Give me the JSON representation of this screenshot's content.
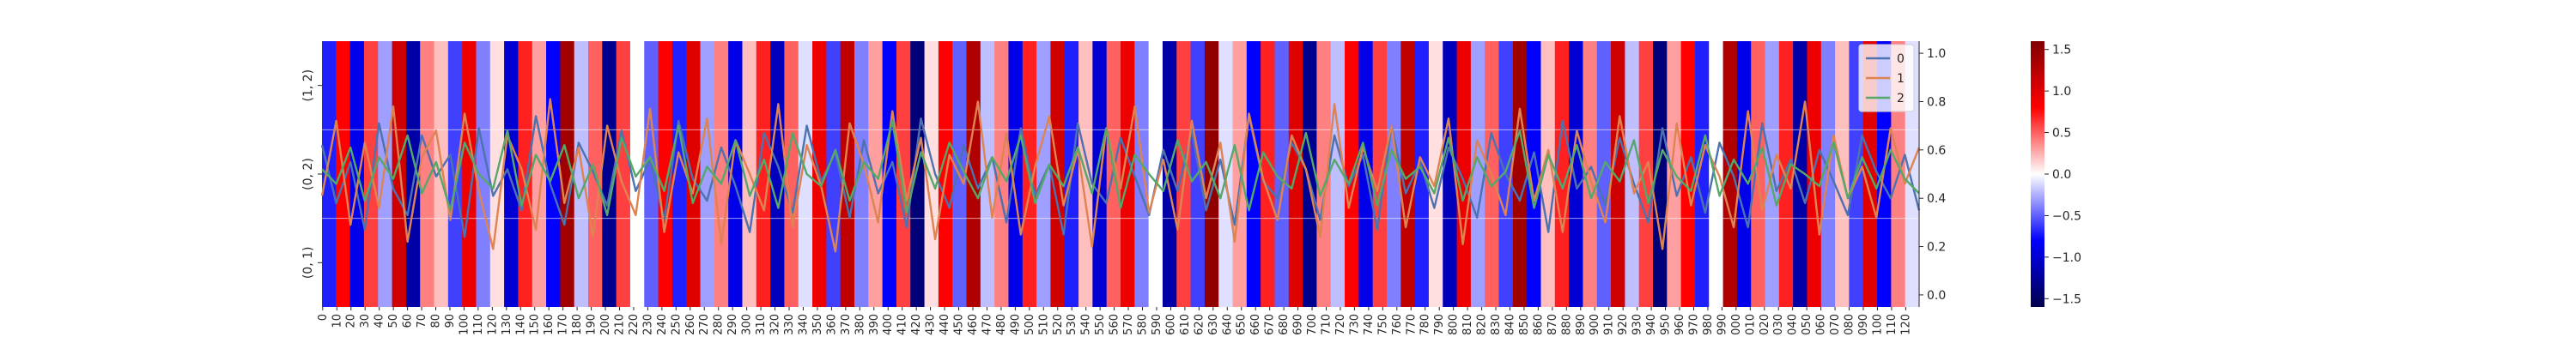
{
  "chart_data": {
    "type": "heatmap",
    "title": "",
    "heatmap": {
      "rows": [
        "(0, 1)",
        "(0, 2)",
        "(1, 2)"
      ],
      "x_tick_step": 10,
      "x_tick_labels": [
        "0",
        "10",
        "20",
        "30",
        "40",
        "50",
        "60",
        "70",
        "80",
        "90",
        "100",
        "110",
        "120",
        "130",
        "140",
        "150",
        "160",
        "170",
        "180",
        "190",
        "200",
        "210",
        "220",
        "230",
        "240",
        "250",
        "260",
        "270",
        "280",
        "290",
        "300",
        "310",
        "320",
        "330",
        "340",
        "350",
        "360",
        "370",
        "380",
        "390",
        "400",
        "410",
        "420",
        "430",
        "440",
        "450",
        "460",
        "470",
        "480",
        "490",
        "500",
        "510",
        "520",
        "530",
        "540",
        "550",
        "560",
        "570",
        "580",
        "590",
        "600",
        "610",
        "620",
        "630",
        "640",
        "650",
        "660",
        "670",
        "680",
        "690",
        "700",
        "710",
        "720",
        "730",
        "740",
        "750",
        "760",
        "770",
        "780",
        "790",
        "800",
        "810",
        "820",
        "830",
        "840",
        "850",
        "860",
        "870",
        "880",
        "890",
        "900",
        "910",
        "920",
        "930",
        "940",
        "950",
        "960",
        "970",
        "980",
        "990",
        "000",
        "010",
        "020",
        "030",
        "040",
        "050",
        "060",
        "070",
        "080",
        "090",
        "100",
        "110",
        "120"
      ],
      "colormap": "seismic",
      "column_values": [
        -0.7,
        0.8,
        -0.9,
        0.6,
        -0.3,
        1.1,
        -1.2,
        0.4,
        0.2,
        -0.6,
        0.9,
        -0.4,
        0.1,
        -1.0,
        0.7,
        0.3,
        -0.8,
        1.4,
        -0.2,
        0.5,
        -1.3,
        0.6,
        0.0,
        -0.5,
        0.8,
        -0.7,
        1.0,
        -0.3,
        0.4,
        -0.9,
        0.2,
        0.7,
        -1.1,
        0.5,
        -0.1,
        0.9,
        -0.6,
        1.2,
        -0.4,
        0.3,
        -0.8,
        0.6,
        -1.4,
        0.1,
        0.8,
        -0.5,
        1.3,
        -0.2,
        0.4,
        -0.9,
        0.7,
        -0.3,
        1.1,
        -0.7,
        0.2,
        -1.0,
        0.5,
        0.9,
        -0.4,
        0.0,
        -1.2,
        0.6,
        -0.6,
        1.5,
        -0.1,
        0.3,
        -0.8,
        0.7,
        -0.5,
        1.0,
        -1.3,
        0.4,
        -0.2,
        0.8,
        -0.9,
        0.6,
        -0.4,
        1.2,
        -0.7,
        0.1,
        -1.1,
        0.9,
        -0.3,
        0.5,
        -0.6,
        1.4,
        -0.8,
        0.2,
        0.7,
        -1.0,
        0.4,
        -0.5,
        1.1,
        -0.2,
        0.6,
        -1.4,
        0.3,
        0.8,
        -0.7,
        0.0,
        1.3,
        -0.9,
        0.5,
        -0.3,
        0.7,
        -1.2,
        0.9,
        -0.4,
        0.2,
        -0.6,
        1.0,
        -0.8,
        0.4,
        -0.1
      ],
      "colorbar": {
        "min": -1.6,
        "max": 1.6,
        "ticks": [
          -1.5,
          -1.0,
          -0.5,
          0.0,
          0.5,
          1.0,
          1.5
        ]
      }
    },
    "lines": {
      "type": "line",
      "ylim": [
        -0.05,
        1.05
      ],
      "y_ticks": [
        0.0,
        0.2,
        0.4,
        0.6,
        0.8,
        1.0
      ],
      "legend_position": "top-right",
      "series": [
        {
          "name": "0",
          "color": "#4c72b0",
          "values": [
            0.62,
            0.38,
            0.55,
            0.27,
            0.71,
            0.44,
            0.33,
            0.66,
            0.49,
            0.58,
            0.24,
            0.69,
            0.41,
            0.52,
            0.35,
            0.74,
            0.46,
            0.29,
            0.63,
            0.51,
            0.37,
            0.68,
            0.43,
            0.56,
            0.31,
            0.72,
            0.48,
            0.39,
            0.61,
            0.45,
            0.26,
            0.67,
            0.53,
            0.34,
            0.7,
            0.47,
            0.59,
            0.32,
            0.64,
            0.42,
            0.55,
            0.28,
            0.73,
            0.5,
            0.36,
            0.62,
            0.44,
            0.57,
            0.3,
            0.69,
            0.41,
            0.54,
            0.25,
            0.71,
            0.46,
            0.38,
            0.65,
            0.49,
            0.33,
            0.6,
            0.43,
            0.68,
            0.35,
            0.56,
            0.29,
            0.74,
            0.47,
            0.4,
            0.63,
            0.52,
            0.31,
            0.66,
            0.45,
            0.58,
            0.27,
            0.7,
            0.42,
            0.55,
            0.36,
            0.61,
            0.48,
            0.32,
            0.67,
            0.5,
            0.39,
            0.59,
            0.26,
            0.72,
            0.44,
            0.53,
            0.37,
            0.65,
            0.46,
            0.3,
            0.69,
            0.41,
            0.57,
            0.34,
            0.63,
            0.49,
            0.28,
            0.71,
            0.43,
            0.56,
            0.38,
            0.6,
            0.47,
            0.33,
            0.66,
            0.51,
            0.4,
            0.58,
            0.35
          ]
        },
        {
          "name": "1",
          "color": "#dd8452",
          "values": [
            0.41,
            0.72,
            0.29,
            0.63,
            0.36,
            0.78,
            0.22,
            0.57,
            0.68,
            0.31,
            0.75,
            0.43,
            0.19,
            0.66,
            0.52,
            0.27,
            0.81,
            0.38,
            0.61,
            0.24,
            0.7,
            0.47,
            0.33,
            0.77,
            0.26,
            0.59,
            0.42,
            0.73,
            0.21,
            0.64,
            0.5,
            0.35,
            0.79,
            0.28,
            0.62,
            0.45,
            0.18,
            0.71,
            0.54,
            0.3,
            0.76,
            0.39,
            0.65,
            0.23,
            0.58,
            0.46,
            0.8,
            0.32,
            0.67,
            0.25,
            0.53,
            0.74,
            0.37,
            0.6,
            0.2,
            0.69,
            0.44,
            0.78,
            0.34,
            0.56,
            0.27,
            0.72,
            0.4,
            0.63,
            0.22,
            0.75,
            0.48,
            0.31,
            0.66,
            0.52,
            0.24,
            0.79,
            0.36,
            0.61,
            0.43,
            0.7,
            0.28,
            0.57,
            0.45,
            0.73,
            0.21,
            0.64,
            0.5,
            0.33,
            0.77,
            0.39,
            0.6,
            0.26,
            0.68,
            0.47,
            0.3,
            0.74,
            0.42,
            0.55,
            0.19,
            0.71,
            0.37,
            0.62,
            0.49,
            0.28,
            0.76,
            0.35,
            0.58,
            0.44,
            0.8,
            0.25,
            0.66,
            0.4,
            0.53,
            0.32,
            0.69,
            0.46,
            0.61
          ]
        },
        {
          "name": "2",
          "color": "#55a868",
          "values": [
            0.52,
            0.46,
            0.61,
            0.39,
            0.57,
            0.48,
            0.66,
            0.42,
            0.55,
            0.35,
            0.63,
            0.5,
            0.44,
            0.68,
            0.37,
            0.58,
            0.47,
            0.62,
            0.4,
            0.54,
            0.33,
            0.65,
            0.49,
            0.57,
            0.43,
            0.7,
            0.38,
            0.53,
            0.46,
            0.64,
            0.41,
            0.56,
            0.36,
            0.67,
            0.5,
            0.45,
            0.6,
            0.39,
            0.55,
            0.48,
            0.72,
            0.34,
            0.59,
            0.44,
            0.63,
            0.51,
            0.4,
            0.57,
            0.47,
            0.66,
            0.38,
            0.54,
            0.45,
            0.61,
            0.42,
            0.69,
            0.36,
            0.58,
            0.5,
            0.43,
            0.64,
            0.47,
            0.55,
            0.4,
            0.62,
            0.35,
            0.59,
            0.49,
            0.44,
            0.67,
            0.41,
            0.56,
            0.46,
            0.63,
            0.37,
            0.6,
            0.48,
            0.53,
            0.42,
            0.65,
            0.39,
            0.57,
            0.45,
            0.51,
            0.68,
            0.36,
            0.58,
            0.44,
            0.62,
            0.4,
            0.55,
            0.47,
            0.64,
            0.38,
            0.6,
            0.49,
            0.43,
            0.66,
            0.41,
            0.56,
            0.46,
            0.61,
            0.37,
            0.54,
            0.5,
            0.45,
            0.63,
            0.4,
            0.57,
            0.44,
            0.6,
            0.48,
            0.42
          ]
        }
      ]
    }
  }
}
